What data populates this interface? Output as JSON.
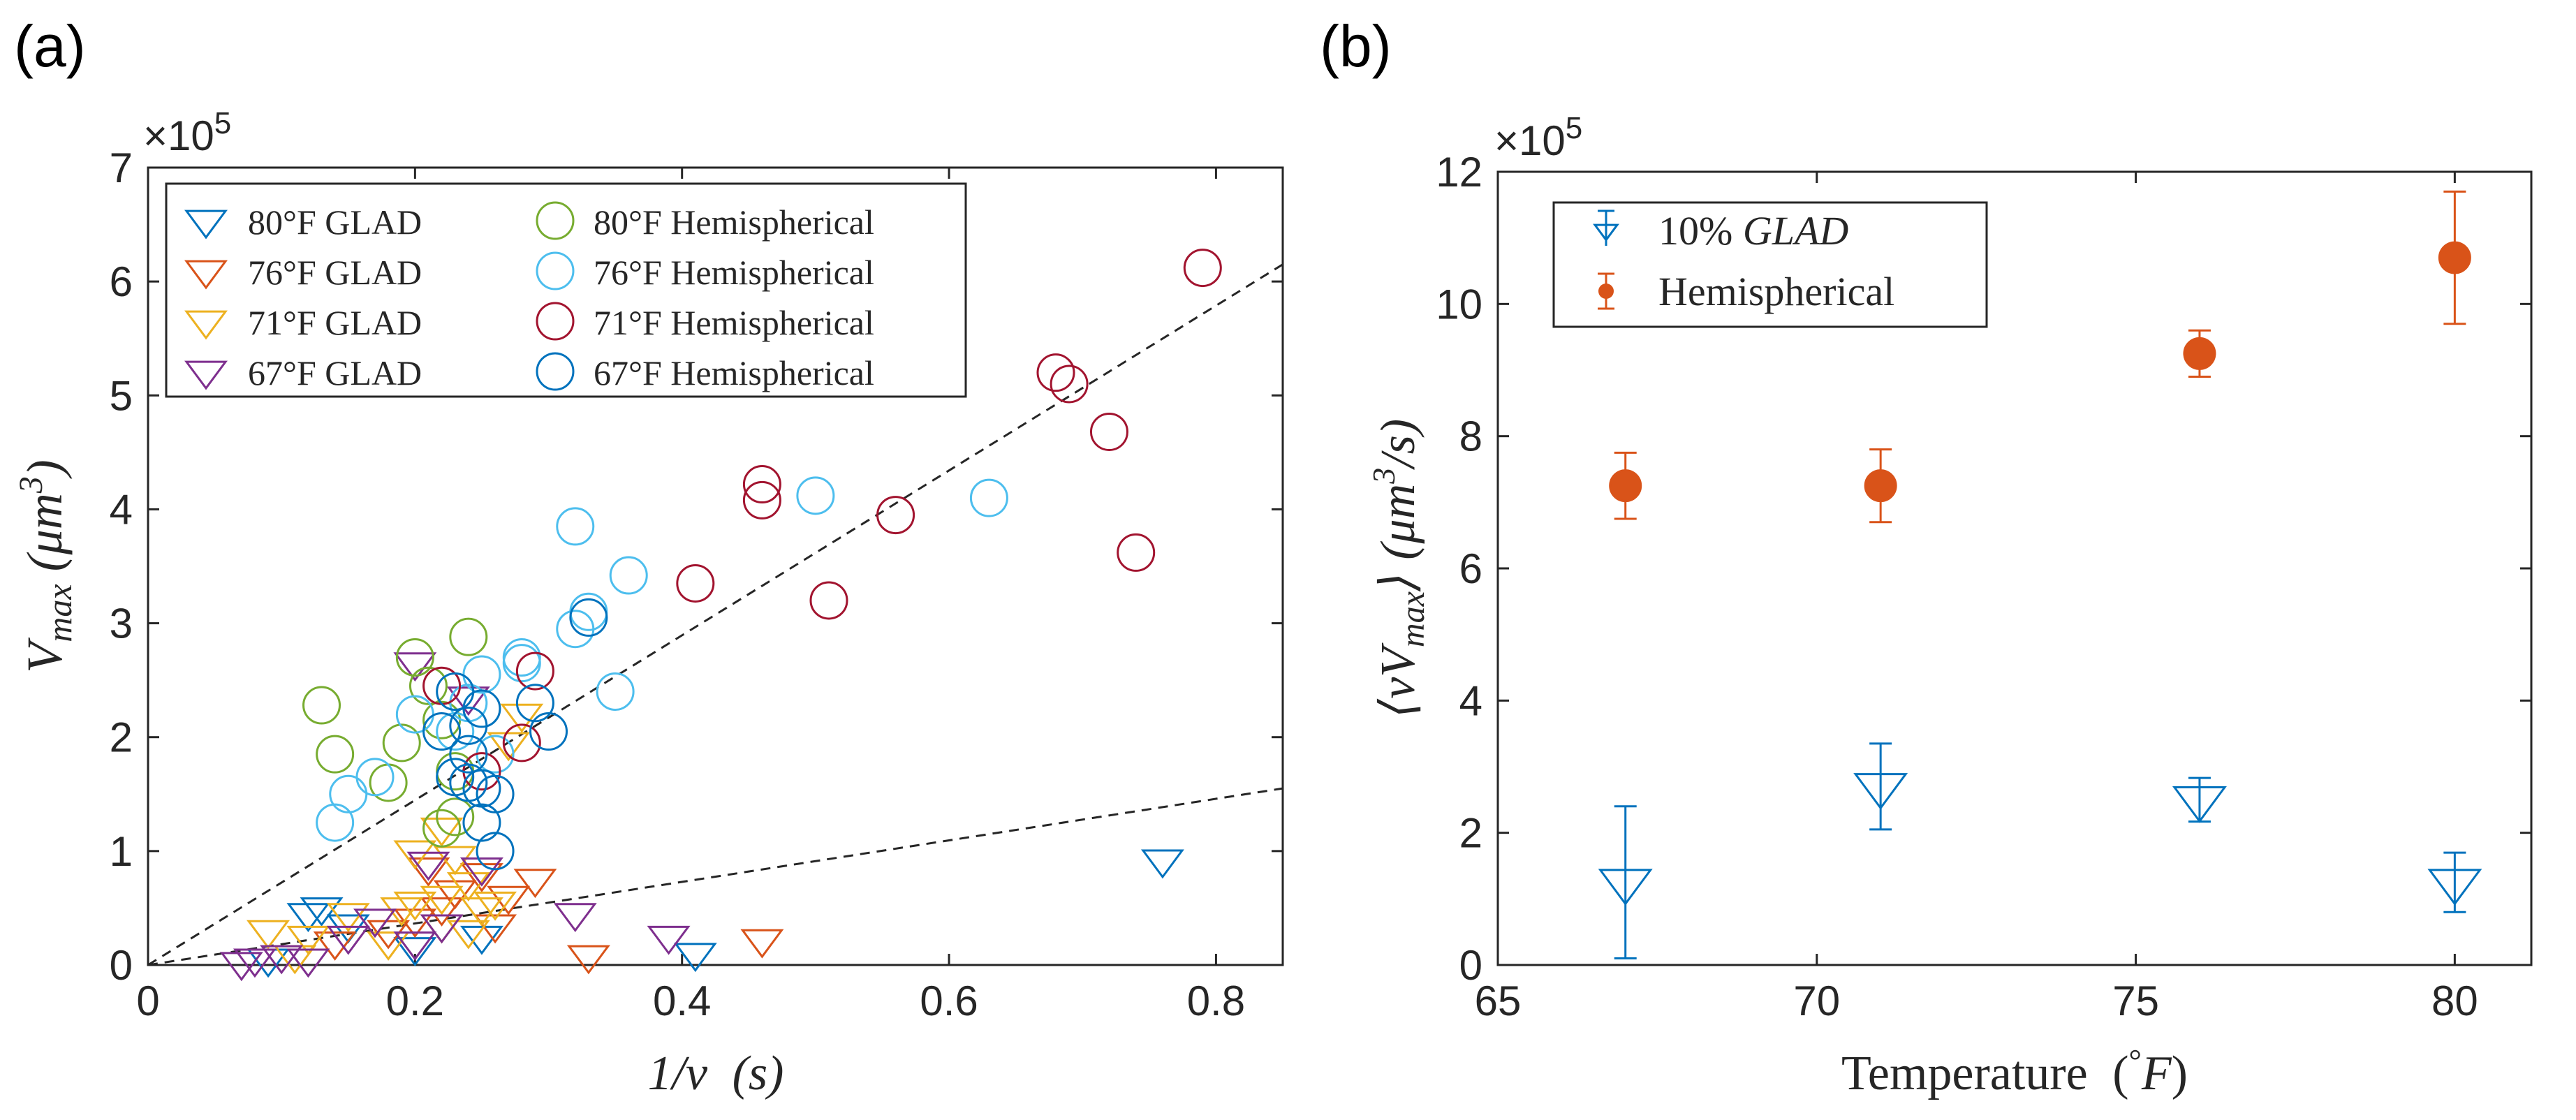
{
  "chart_data": [
    {
      "panel_label": "(a)",
      "type": "scatter",
      "xlabel": "1/ν (s)",
      "ylabel": "V_max (μm^3)",
      "ylabel_parts": {
        "v": "V",
        "sub": "max",
        "unit": "(μm",
        "exp": "3",
        "close": ")"
      },
      "xlabel_parts": {
        "main": "1/ν",
        "unit": "(s)"
      },
      "exponent_label": "×10",
      "exponent_power": "5",
      "xlim": [
        0,
        0.85
      ],
      "ylim": [
        0,
        7
      ],
      "xticks": [
        0,
        0.2,
        0.4,
        0.6,
        0.8
      ],
      "xtick_labels": [
        "0",
        "0.2",
        "0.4",
        "0.6",
        "0.8"
      ],
      "yticks": [
        0,
        1,
        2,
        3,
        4,
        5,
        6,
        7
      ],
      "ytick_labels": [
        "0",
        "1",
        "2",
        "3",
        "4",
        "5",
        "6",
        "7"
      ],
      "legend_position": "top-left",
      "series": [
        {
          "name": "80°F GLAD",
          "marker": "triangle-down",
          "color": "#0072BD",
          "points": [
            [
              0.12,
              0.45
            ],
            [
              0.13,
              0.5
            ],
            [
              0.76,
              0.92
            ],
            [
              0.41,
              0.1
            ],
            [
              0.2,
              0.15
            ],
            [
              0.15,
              0.35
            ],
            [
              0.25,
              0.25
            ],
            [
              0.09,
              0.05
            ]
          ]
        },
        {
          "name": "76°F GLAD",
          "marker": "triangle-down",
          "color": "#D95319",
          "points": [
            [
              0.33,
              0.08
            ],
            [
              0.46,
              0.22
            ],
            [
              0.29,
              0.75
            ],
            [
              0.26,
              0.35
            ],
            [
              0.23,
              0.65
            ],
            [
              0.2,
              0.4
            ],
            [
              0.27,
              0.6
            ],
            [
              0.21,
              0.85
            ],
            [
              0.14,
              0.2
            ],
            [
              0.25,
              0.8
            ],
            [
              0.22,
              0.5
            ],
            [
              0.18,
              0.3
            ]
          ]
        },
        {
          "name": "71°F GLAD",
          "marker": "triangle-down",
          "color": "#EDB120",
          "points": [
            [
              0.09,
              0.3
            ],
            [
              0.12,
              0.25
            ],
            [
              0.15,
              0.45
            ],
            [
              0.2,
              0.55
            ],
            [
              0.22,
              0.6
            ],
            [
              0.22,
              0.35
            ],
            [
              0.24,
              0.3
            ],
            [
              0.26,
              0.55
            ],
            [
              0.28,
              2.2
            ],
            [
              0.2,
              1.0
            ],
            [
              0.22,
              1.2
            ],
            [
              0.25,
              0.5
            ],
            [
              0.24,
              0.72
            ],
            [
              0.27,
              1.95
            ],
            [
              0.11,
              0.08
            ],
            [
              0.18,
              0.2
            ],
            [
              0.23,
              0.95
            ],
            [
              0.19,
              0.5
            ]
          ]
        },
        {
          "name": "67°F GLAD",
          "marker": "triangle-down",
          "color": "#7E2F8E",
          "points": [
            [
              0.07,
              0.02
            ],
            [
              0.08,
              0.05
            ],
            [
              0.1,
              0.08
            ],
            [
              0.12,
              0.05
            ],
            [
              0.15,
              0.25
            ],
            [
              0.2,
              0.2
            ],
            [
              0.22,
              0.35
            ],
            [
              0.21,
              0.9
            ],
            [
              0.25,
              0.85
            ],
            [
              0.32,
              0.45
            ],
            [
              0.39,
              0.25
            ],
            [
              0.2,
              2.65
            ],
            [
              0.24,
              2.35
            ],
            [
              0.17,
              0.4
            ]
          ]
        },
        {
          "name": "80°F Hemispherical",
          "marker": "circle",
          "color": "#77AC30",
          "points": [
            [
              0.13,
              2.28
            ],
            [
              0.14,
              1.85
            ],
            [
              0.2,
              2.7
            ],
            [
              0.21,
              2.45
            ],
            [
              0.22,
              2.15
            ],
            [
              0.19,
              1.95
            ],
            [
              0.18,
              1.6
            ],
            [
              0.23,
              1.7
            ],
            [
              0.23,
              1.3
            ],
            [
              0.24,
              2.88
            ],
            [
              0.22,
              1.2
            ]
          ]
        },
        {
          "name": "76°F Hemispherical",
          "marker": "circle",
          "color": "#4DBEEE",
          "points": [
            [
              0.14,
              1.25
            ],
            [
              0.15,
              1.5
            ],
            [
              0.17,
              1.65
            ],
            [
              0.2,
              2.2
            ],
            [
              0.23,
              2.05
            ],
            [
              0.25,
              2.55
            ],
            [
              0.28,
              2.7
            ],
            [
              0.28,
              2.65
            ],
            [
              0.32,
              3.85
            ],
            [
              0.33,
              3.1
            ],
            [
              0.32,
              2.95
            ],
            [
              0.36,
              3.42
            ],
            [
              0.35,
              2.4
            ],
            [
              0.5,
              4.12
            ],
            [
              0.63,
              4.1
            ],
            [
              0.24,
              2.3
            ],
            [
              0.26,
              1.85
            ]
          ]
        },
        {
          "name": "71°F Hemispherical",
          "marker": "circle",
          "color": "#A2142F",
          "points": [
            [
              0.79,
              6.12
            ],
            [
              0.68,
              5.2
            ],
            [
              0.69,
              5.1
            ],
            [
              0.72,
              4.68
            ],
            [
              0.74,
              3.62
            ],
            [
              0.56,
              3.95
            ],
            [
              0.51,
              3.2
            ],
            [
              0.46,
              4.22
            ],
            [
              0.46,
              4.08
            ],
            [
              0.41,
              3.35
            ],
            [
              0.29,
              2.58
            ],
            [
              0.28,
              1.95
            ],
            [
              0.22,
              2.45
            ],
            [
              0.25,
              1.7
            ]
          ]
        },
        {
          "name": "67°F Hemispherical",
          "marker": "circle",
          "color": "#0072BD",
          "points": [
            [
              0.33,
              3.05
            ],
            [
              0.3,
              2.05
            ],
            [
              0.29,
              2.3
            ],
            [
              0.25,
              1.55
            ],
            [
              0.25,
              1.25
            ],
            [
              0.26,
              1.5
            ],
            [
              0.22,
              2.05
            ],
            [
              0.23,
              2.4
            ],
            [
              0.24,
              2.1
            ],
            [
              0.24,
              1.85
            ],
            [
              0.25,
              2.25
            ],
            [
              0.23,
              1.65
            ],
            [
              0.26,
              1.0
            ],
            [
              0.24,
              1.6
            ]
          ]
        }
      ],
      "fit_lines": [
        {
          "style": "dashed",
          "x": [
            0,
            0.85
          ],
          "y": [
            0,
            6.15
          ]
        },
        {
          "style": "dashed",
          "x": [
            0,
            0.85
          ],
          "y": [
            0,
            1.55
          ]
        }
      ]
    },
    {
      "panel_label": "(b)",
      "type": "scatter",
      "xlabel": "Temperature (°F)",
      "xlabel_parts": {
        "main": "Temperature",
        "open": "(",
        "deg": "°",
        "unit": "F",
        "close": ")"
      },
      "ylabel": "⟨νV_max⟩ (μm^3/s)",
      "ylabel_parts": {
        "lhs": "⟨νV",
        "sub": "max",
        "rhs": "⟩",
        "unit": "(μm",
        "exp": "3",
        "tail": "/s)"
      },
      "exponent_label": "×10",
      "exponent_power": "5",
      "xlim": [
        65,
        81.2
      ],
      "ylim": [
        0,
        12
      ],
      "xticks": [
        65,
        70,
        75,
        80
      ],
      "xtick_labels": [
        "65",
        "70",
        "75",
        "80"
      ],
      "yticks": [
        0,
        2,
        4,
        6,
        8,
        10,
        12
      ],
      "ytick_labels": [
        "0",
        "2",
        "4",
        "6",
        "8",
        "10",
        "12"
      ],
      "legend_position": "top-left",
      "series": [
        {
          "name": "10% GLAD",
          "legend_plain": "10%",
          "legend_italic": "GLAD",
          "marker": "triangle-down",
          "color": "#0072BD",
          "x": [
            67,
            71,
            76,
            80
          ],
          "y": [
            1.25,
            2.7,
            2.5,
            1.25
          ],
          "err": [
            1.15,
            0.65,
            0.33,
            0.45
          ]
        },
        {
          "name": "Hemispherical",
          "marker": "filled-circle",
          "color": "#D95319",
          "x": [
            67,
            71,
            76,
            80
          ],
          "y": [
            7.25,
            7.25,
            9.25,
            10.7
          ],
          "err": [
            0.5,
            0.55,
            0.35,
            1.0
          ]
        }
      ]
    }
  ]
}
